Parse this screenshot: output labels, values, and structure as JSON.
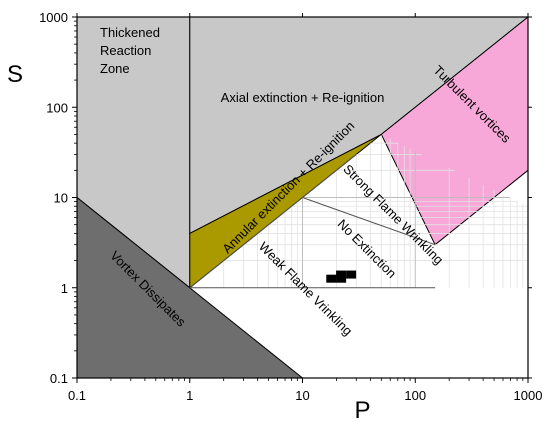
{
  "chart_data": {
    "type": "regime-diagram",
    "xlabel": "P",
    "ylabel": "S",
    "xscale": "log",
    "yscale": "log",
    "xlim": [
      0.1,
      1000
    ],
    "ylim": [
      0.1,
      1000
    ],
    "x_ticks": [
      {
        "value": 0.1,
        "label": "0.1"
      },
      {
        "value": 1,
        "label": "1"
      },
      {
        "value": 10,
        "label": "10"
      },
      {
        "value": 100,
        "label": "100"
      },
      {
        "value": 1000,
        "label": "1000"
      }
    ],
    "y_ticks": [
      {
        "value": 0.1,
        "label": "0.1"
      },
      {
        "value": 1,
        "label": "1"
      },
      {
        "value": 10,
        "label": "10"
      },
      {
        "value": 100,
        "label": "100"
      },
      {
        "value": 1000,
        "label": "1000"
      }
    ],
    "grid": "minor-lines-in-white-region",
    "regions": [
      {
        "name": "thickened-reaction-zone",
        "color": "#c8c8c8",
        "polygon": [
          [
            0.1,
            10
          ],
          [
            1,
            1
          ],
          [
            1,
            1000
          ],
          [
            0.1,
            1000
          ]
        ]
      },
      {
        "name": "axial-extinction",
        "color": "#c8c8c8",
        "polygon": [
          [
            1,
            4
          ],
          [
            1,
            1000
          ],
          [
            1000,
            1000
          ],
          [
            50,
            50
          ]
        ]
      },
      {
        "name": "turbulent-vortices",
        "color": "#f7a8d8",
        "polygon": [
          [
            1000,
            1000
          ],
          [
            1000,
            20
          ],
          [
            150,
            3
          ],
          [
            50,
            50
          ]
        ]
      },
      {
        "name": "annular-extinction",
        "color": "#aa9a00",
        "polygon": [
          [
            1,
            1
          ],
          [
            1,
            4
          ],
          [
            50,
            50
          ],
          [
            30,
            30
          ]
        ]
      },
      {
        "name": "vortex-dissipates",
        "color": "#6e6e6e",
        "polygon": [
          [
            0.1,
            10
          ],
          [
            0.1,
            0.1
          ],
          [
            10,
            0.1
          ]
        ]
      }
    ],
    "lines": [
      {
        "name": "boundary-strong",
        "points": [
          [
            10,
            10
          ],
          [
            150,
            3
          ]
        ]
      },
      {
        "name": "boundary-weak",
        "points": [
          [
            1,
            1
          ],
          [
            30,
            30
          ]
        ]
      },
      {
        "name": "s-equals-1",
        "points": [
          [
            1,
            1
          ],
          [
            150,
            1
          ]
        ]
      }
    ],
    "markers": [
      {
        "name": "data-point-1",
        "x": 18,
        "y": 1.26
      },
      {
        "name": "data-point-2",
        "x": 22,
        "y": 1.26
      },
      {
        "name": "data-point-3",
        "x": 22,
        "y": 1.4
      },
      {
        "name": "data-point-4",
        "x": 27,
        "y": 1.4
      }
    ],
    "annotations": [
      {
        "name": "label-thickened-reaction-zone",
        "text": [
          "Thickened",
          "Reaction",
          "Zone"
        ],
        "x": 0.16,
        "y": 600,
        "rotate": 0,
        "anchor": "start"
      },
      {
        "name": "label-axial-extinction",
        "text": [
          "Axial extinction + Re-ignition"
        ],
        "x": 10,
        "y": 115,
        "rotate": 0,
        "anchor": "middle"
      },
      {
        "name": "label-turbulent-vortices",
        "text": [
          "Turbulent vortices"
        ],
        "x": 300,
        "y": 100,
        "rotate": 45,
        "anchor": "middle"
      },
      {
        "name": "label-annular-extinction",
        "text": [
          "Annular extinction + Re-ignition"
        ],
        "x": 8,
        "y": 12,
        "rotate": -45,
        "anchor": "middle"
      },
      {
        "name": "label-strong-flame-wrinkling",
        "text": [
          "Strong Flame Wrinkling"
        ],
        "x": 60,
        "y": 6,
        "rotate": 45,
        "anchor": "middle"
      },
      {
        "name": "label-no-extinction",
        "text": [
          "No Extinction"
        ],
        "x": 35,
        "y": 2.5,
        "rotate": 45,
        "anchor": "middle"
      },
      {
        "name": "label-weak-flame-wrinkling",
        "text": [
          "Weak Flame Vrinkling"
        ],
        "x": 10,
        "y": 0.9,
        "rotate": 45,
        "anchor": "middle"
      },
      {
        "name": "label-vortex-dissipates",
        "text": [
          "Vortex Dissipates"
        ],
        "x": 0.4,
        "y": 0.9,
        "rotate": 45,
        "anchor": "middle"
      }
    ]
  }
}
